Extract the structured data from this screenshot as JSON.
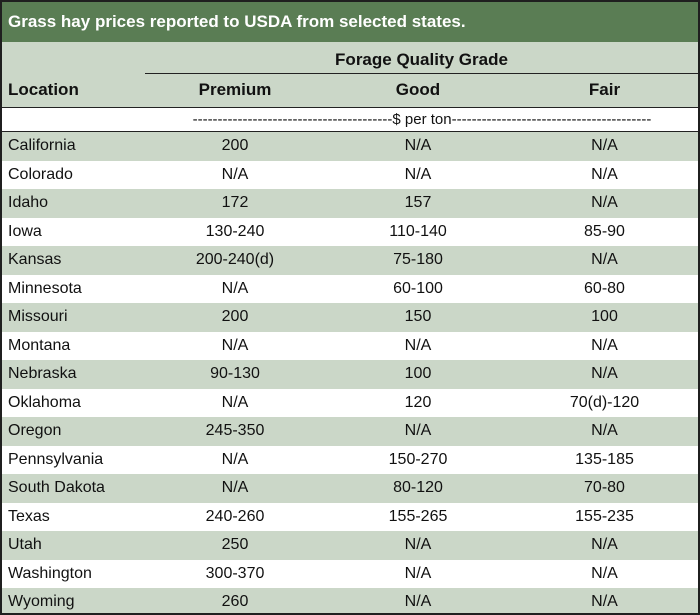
{
  "title": "Grass hay prices reported to USDA from selected states.",
  "group_header": "Forage Quality Grade",
  "columns": [
    "Location",
    "Premium",
    "Good",
    "Fair"
  ],
  "units": "----------------------------------------$ per ton----------------------------------------",
  "colors": {
    "title_bg": "#5a7d54",
    "band": "#cbd7c8",
    "border": "#1f1f1f"
  },
  "rows": [
    {
      "location": "California",
      "premium": "200",
      "good": "N/A",
      "fair": "N/A"
    },
    {
      "location": "Colorado",
      "premium": "N/A",
      "good": "N/A",
      "fair": "N/A"
    },
    {
      "location": "Idaho",
      "premium": "172",
      "good": "157",
      "fair": "N/A"
    },
    {
      "location": "Iowa",
      "premium": "130-240",
      "good": "110-140",
      "fair": "85-90"
    },
    {
      "location": "Kansas",
      "premium": "200-240(d)",
      "good": "75-180",
      "fair": "N/A"
    },
    {
      "location": "Minnesota",
      "premium": "N/A",
      "good": "60-100",
      "fair": "60-80"
    },
    {
      "location": "Missouri",
      "premium": "200",
      "good": "150",
      "fair": "100"
    },
    {
      "location": "Montana",
      "premium": "N/A",
      "good": "N/A",
      "fair": "N/A"
    },
    {
      "location": "Nebraska",
      "premium": "90-130",
      "good": "100",
      "fair": "N/A"
    },
    {
      "location": "Oklahoma",
      "premium": "N/A",
      "good": "120",
      "fair": "70(d)-120"
    },
    {
      "location": "Oregon",
      "premium": "245-350",
      "good": "N/A",
      "fair": "N/A"
    },
    {
      "location": "Pennsylvania",
      "premium": "N/A",
      "good": "150-270",
      "fair": "135-185"
    },
    {
      "location": "South Dakota",
      "premium": "N/A",
      "good": "80-120",
      "fair": "70-80"
    },
    {
      "location": "Texas",
      "premium": "240-260",
      "good": "155-265",
      "fair": "155-235"
    },
    {
      "location": "Utah",
      "premium": "250",
      "good": "N/A",
      "fair": "N/A"
    },
    {
      "location": "Washington",
      "premium": "300-370",
      "good": "N/A",
      "fair": "N/A"
    },
    {
      "location": "Wyoming",
      "premium": "260",
      "good": "N/A",
      "fair": "N/A"
    }
  ]
}
